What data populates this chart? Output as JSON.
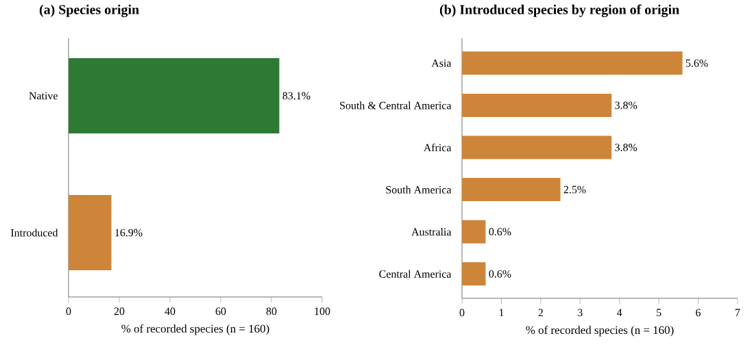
{
  "chart_data": [
    {
      "type": "bar",
      "orientation": "horizontal",
      "title": "(a) Species origin",
      "xlabel": "% of recorded species (n = 160)",
      "categories": [
        "Native",
        "Introduced"
      ],
      "values": [
        83.1,
        16.9
      ],
      "colors": [
        "#2e7a34",
        "#cd853a"
      ],
      "value_labels": [
        "83.1%",
        "16.9%"
      ],
      "xlim": [
        0,
        100
      ],
      "xticks": [
        0,
        20,
        40,
        60,
        80,
        100
      ]
    },
    {
      "type": "bar",
      "orientation": "horizontal",
      "title": "(b) Introduced species by region of origin",
      "xlabel": "% of recorded species (n = 160)",
      "categories": [
        "Asia",
        "South & Central America",
        "Africa",
        "South America",
        "Australia",
        "Central America"
      ],
      "values": [
        5.6,
        3.8,
        3.8,
        2.5,
        0.6,
        0.6
      ],
      "colors": [
        "#cd853a",
        "#cd853a",
        "#cd853a",
        "#cd853a",
        "#cd853a",
        "#cd853a"
      ],
      "value_labels": [
        "5.6%",
        "3.8%",
        "3.8%",
        "2.5%",
        "0.6%",
        "0.6%"
      ],
      "xlim": [
        0,
        7
      ],
      "xticks": [
        0,
        1,
        2,
        3,
        4,
        5,
        6,
        7
      ]
    }
  ]
}
